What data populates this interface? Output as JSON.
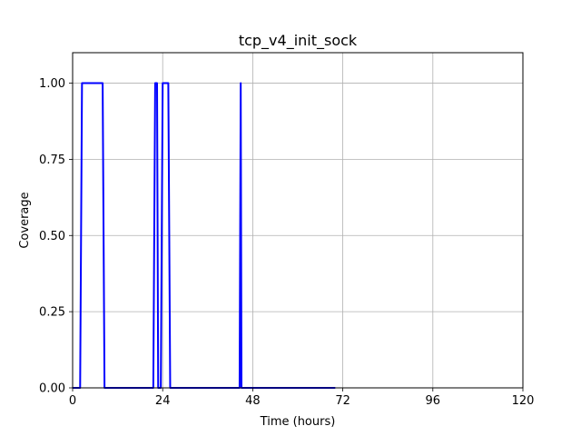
{
  "chart_data": {
    "type": "line",
    "title": "tcp_v4_init_sock",
    "xlabel": "Time (hours)",
    "ylabel": "Coverage",
    "xlim": [
      0,
      120
    ],
    "ylim": [
      0,
      1.1
    ],
    "xticks": [
      0,
      24,
      48,
      72,
      96,
      120
    ],
    "xtick_labels": [
      "0",
      "24",
      "48",
      "72",
      "96",
      "120"
    ],
    "yticks": [
      0,
      0.25,
      0.5,
      0.75,
      1.0
    ],
    "ytick_labels": [
      "0.00",
      "0.25",
      "0.50",
      "0.75",
      "1.00"
    ],
    "grid": true,
    "series": [
      {
        "color": "#0000ff",
        "x": [
          0,
          2,
          2.5,
          7,
          7.5,
          8,
          8.5,
          21.5,
          22,
          22.5,
          22.8,
          23.5,
          24,
          24.5,
          25,
          25.5,
          26,
          44.5,
          44.8,
          45,
          45.3,
          70
        ],
        "y": [
          0,
          0,
          1,
          1,
          1,
          1,
          0,
          0,
          1,
          1,
          0,
          0,
          1,
          1,
          1,
          1,
          0,
          0,
          1,
          0,
          0,
          0
        ]
      }
    ]
  }
}
